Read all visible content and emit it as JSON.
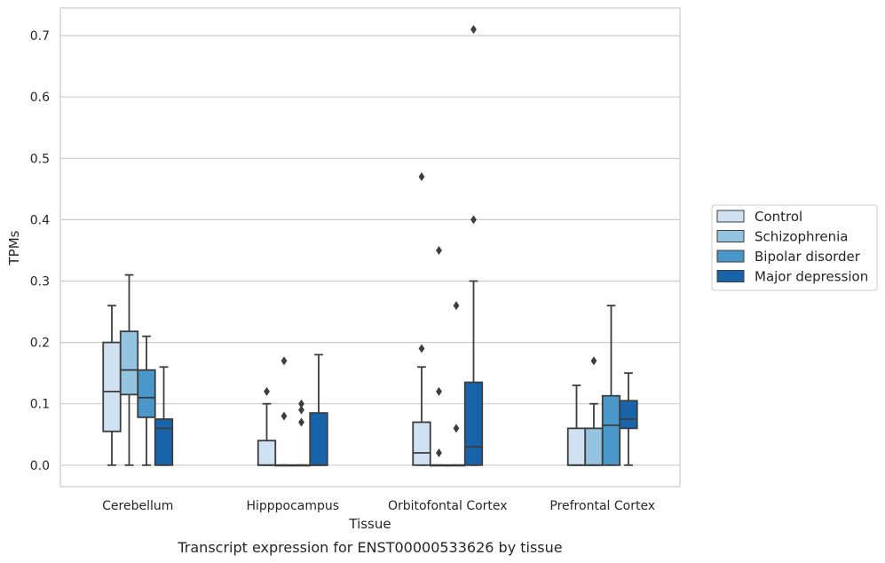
{
  "chart_data": {
    "type": "box",
    "title": "",
    "caption": "Transcript expression for ENST00000533626 by tissue",
    "xlabel": "Tissue",
    "ylabel": "TPMs",
    "ylim": [
      -0.035,
      0.745
    ],
    "yticks": [
      0.0,
      0.1,
      0.2,
      0.3,
      0.4,
      0.5,
      0.6,
      0.7
    ],
    "ytick_labels": [
      "0.0",
      "0.1",
      "0.2",
      "0.3",
      "0.4",
      "0.5",
      "0.6",
      "0.7"
    ],
    "grid": true,
    "legend_position": "right",
    "categories": [
      "Cerebellum",
      "Hipppocampus",
      "Orbitofontal Cortex",
      "Prefrontal Cortex"
    ],
    "series": [
      {
        "name": "Control",
        "color": "#d0e1f2",
        "boxes": [
          {
            "min": 0.0,
            "q1": 0.055,
            "median": 0.12,
            "q3": 0.2,
            "max": 0.26,
            "outliers": []
          },
          {
            "min": 0.0,
            "q1": 0.0,
            "median": 0.0,
            "q3": 0.04,
            "max": 0.1,
            "outliers": [
              0.12
            ]
          },
          {
            "min": 0.0,
            "q1": 0.0,
            "median": 0.02,
            "q3": 0.07,
            "max": 0.16,
            "outliers": [
              0.19,
              0.47
            ]
          },
          {
            "min": 0.0,
            "q1": 0.0,
            "median": 0.0,
            "q3": 0.06,
            "max": 0.13,
            "outliers": []
          }
        ]
      },
      {
        "name": "Schizophrenia",
        "color": "#94c4df",
        "boxes": [
          {
            "min": 0.0,
            "q1": 0.115,
            "median": 0.155,
            "q3": 0.218,
            "max": 0.31,
            "outliers": []
          },
          {
            "min": 0.0,
            "q1": 0.0,
            "median": 0.0,
            "q3": 0.0,
            "max": 0.0,
            "outliers": [
              0.08,
              0.17
            ]
          },
          {
            "min": 0.0,
            "q1": 0.0,
            "median": 0.0,
            "q3": 0.0,
            "max": 0.0,
            "outliers": [
              0.02,
              0.12,
              0.35
            ]
          },
          {
            "min": 0.0,
            "q1": 0.0,
            "median": 0.0,
            "q3": 0.06,
            "max": 0.1,
            "outliers": [
              0.17
            ]
          }
        ]
      },
      {
        "name": "Bipolar disorder",
        "color": "#4a98c9",
        "boxes": [
          {
            "min": 0.0,
            "q1": 0.078,
            "median": 0.11,
            "q3": 0.155,
            "max": 0.21,
            "outliers": []
          },
          {
            "min": 0.0,
            "q1": 0.0,
            "median": 0.0,
            "q3": 0.0,
            "max": 0.0,
            "outliers": [
              0.07,
              0.09,
              0.1
            ]
          },
          {
            "min": 0.0,
            "q1": 0.0,
            "median": 0.0,
            "q3": 0.0,
            "max": 0.0,
            "outliers": [
              0.06,
              0.26
            ]
          },
          {
            "min": 0.0,
            "q1": 0.0,
            "median": 0.065,
            "q3": 0.113,
            "max": 0.26,
            "outliers": []
          }
        ]
      },
      {
        "name": "Major depression",
        "color": "#1764ab",
        "boxes": [
          {
            "min": 0.0,
            "q1": 0.0,
            "median": 0.06,
            "q3": 0.075,
            "max": 0.16,
            "outliers": []
          },
          {
            "min": 0.0,
            "q1": 0.0,
            "median": 0.0,
            "q3": 0.085,
            "max": 0.18,
            "outliers": []
          },
          {
            "min": 0.0,
            "q1": 0.0,
            "median": 0.03,
            "q3": 0.135,
            "max": 0.3,
            "outliers": [
              0.4,
              0.71
            ]
          },
          {
            "min": 0.0,
            "q1": 0.06,
            "median": 0.075,
            "q3": 0.105,
            "max": 0.15,
            "outliers": []
          }
        ]
      }
    ]
  }
}
